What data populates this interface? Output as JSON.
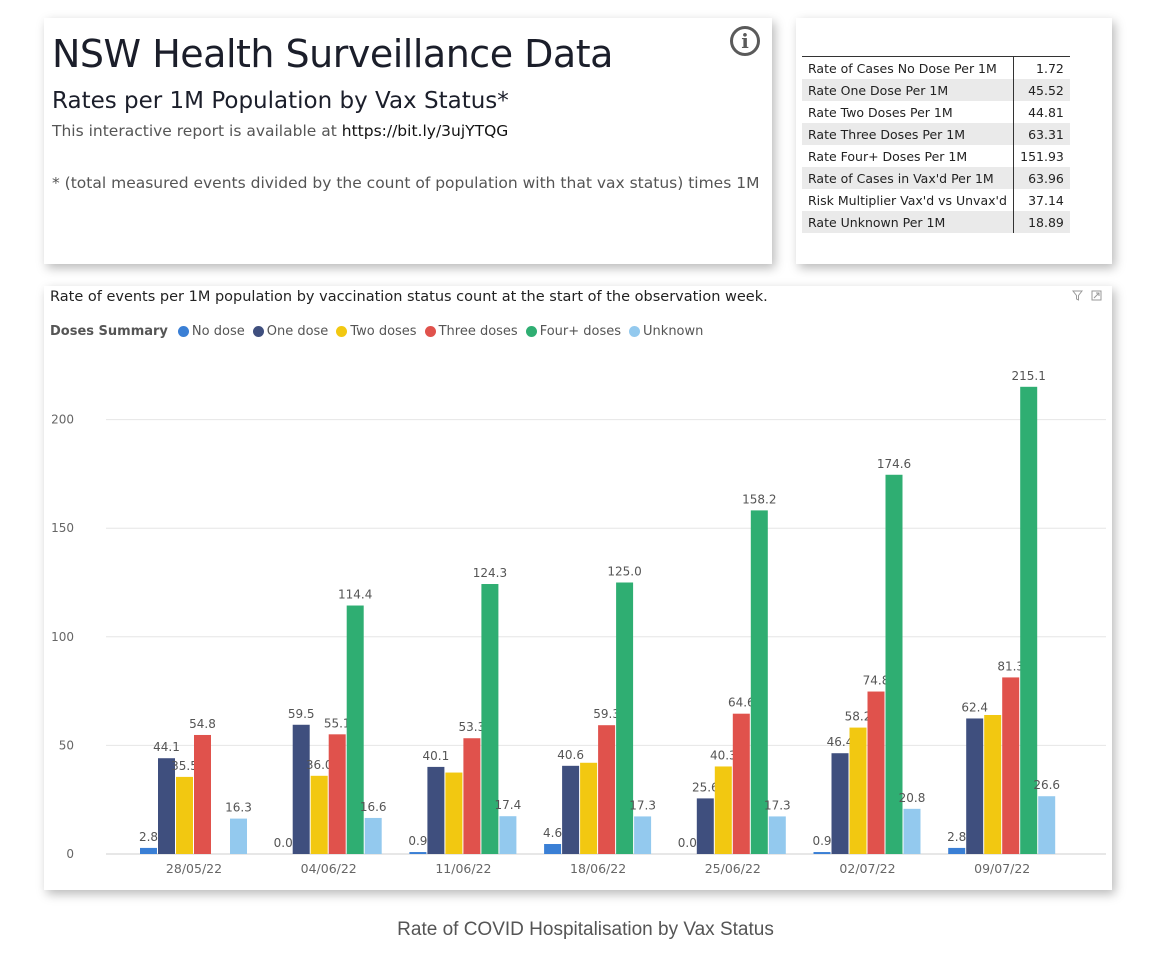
{
  "header": {
    "title": "NSW Health Surveillance Data",
    "subtitle": "Rates per 1M Population by Vax Status*",
    "availability_prefix": "This interactive report is available at",
    "availability_url": "https://bit.ly/3ujYTQG",
    "footnote": "* (total measured events divided by the count of population with that vax status) times 1M",
    "info_icon": "info-icon"
  },
  "stats": [
    {
      "label": "Rate of Cases No Dose Per 1M",
      "value": "1.72"
    },
    {
      "label": "Rate One Dose Per 1M",
      "value": "45.52"
    },
    {
      "label": "Rate Two Doses Per 1M",
      "value": "44.81"
    },
    {
      "label": "Rate Three Doses Per 1M",
      "value": "63.31"
    },
    {
      "label": "Rate Four+ Doses Per 1M",
      "value": "151.93"
    },
    {
      "label": "Rate of Cases in Vax'd Per 1M",
      "value": "63.96"
    },
    {
      "label": "Risk Multiplier Vax'd vs Unvax'd",
      "value": "37.14"
    },
    {
      "label": "Rate Unknown Per 1M",
      "value": "18.89"
    }
  ],
  "caption": "Rate of COVID Hospitalisation by Vax Status",
  "chart_data": {
    "type": "bar",
    "title": "Rate of events per 1M population by vaccination status count at the start of the observation week.",
    "legend_title": "Doses Summary",
    "legend_position": "top-left",
    "categories": [
      "28/05/22",
      "04/06/22",
      "11/06/22",
      "18/06/22",
      "25/06/22",
      "02/07/22",
      "09/07/22"
    ],
    "ylim": [
      0,
      225
    ],
    "yticks": [
      0,
      50,
      100,
      150,
      200
    ],
    "grid": true,
    "series": [
      {
        "name": "No dose",
        "color": "#3a7fd5",
        "values": [
          2.8,
          0.0,
          0.9,
          4.6,
          0.0,
          0.9,
          2.8
        ],
        "labels": [
          "2.8",
          "0.0",
          "0.9",
          "4.6",
          "0.0",
          "0.9",
          "2.8"
        ]
      },
      {
        "name": "One dose",
        "color": "#3f4f7e",
        "values": [
          44.1,
          59.5,
          40.1,
          40.6,
          25.6,
          46.4,
          62.4
        ],
        "labels": [
          "44.1",
          "59.5",
          "40.1",
          "40.6",
          "25.6",
          "46.4",
          "62.4"
        ]
      },
      {
        "name": "Two doses",
        "color": "#f2c811",
        "values": [
          35.5,
          36.0,
          37.5,
          42.0,
          40.3,
          58.2,
          64.0
        ],
        "labels": [
          "35.5",
          "36.0",
          "",
          "",
          "40.3",
          "58.2",
          ""
        ]
      },
      {
        "name": "Three doses",
        "color": "#e0524c",
        "values": [
          54.8,
          55.1,
          53.3,
          59.3,
          64.6,
          74.8,
          81.3
        ],
        "labels": [
          "54.8",
          "55.1",
          "53.3",
          "59.3",
          "64.6",
          "74.8",
          "81.3"
        ]
      },
      {
        "name": "Four+ doses",
        "color": "#2fae72",
        "values": [
          0,
          114.4,
          124.3,
          125.0,
          158.2,
          174.6,
          215.1
        ],
        "labels": [
          "",
          "114.4",
          "124.3",
          "125.0",
          "158.2",
          "174.6",
          "215.1"
        ]
      },
      {
        "name": "Unknown",
        "color": "#93c9ee",
        "values": [
          16.3,
          16.6,
          17.4,
          17.3,
          17.3,
          20.8,
          26.6
        ],
        "labels": [
          "16.3",
          "16.6",
          "17.4",
          "17.3",
          "17.3",
          "20.8",
          "26.6"
        ]
      }
    ]
  }
}
